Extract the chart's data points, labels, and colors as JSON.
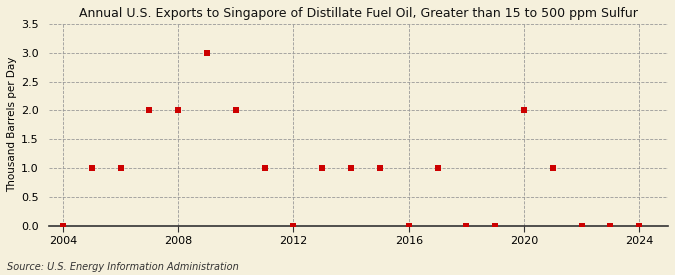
{
  "title": "Annual U.S. Exports to Singapore of Distillate Fuel Oil, Greater than 15 to 500 ppm Sulfur",
  "ylabel": "Thousand Barrels per Day",
  "source": "Source: U.S. Energy Information Administration",
  "background_color": "#f5f0dc",
  "plot_background_color": "#f5f0dc",
  "marker_color": "#cc0000",
  "marker_size": 18,
  "xlim": [
    2003.5,
    2025
  ],
  "ylim": [
    0.0,
    3.5
  ],
  "yticks": [
    0.0,
    0.5,
    1.0,
    1.5,
    2.0,
    2.5,
    3.0,
    3.5
  ],
  "xticks": [
    2004,
    2008,
    2012,
    2016,
    2020,
    2024
  ],
  "years": [
    2004,
    2005,
    2006,
    2007,
    2008,
    2009,
    2010,
    2011,
    2012,
    2013,
    2014,
    2015,
    2016,
    2017,
    2018,
    2019,
    2020,
    2021,
    2022,
    2023,
    2024
  ],
  "values": [
    0.0,
    1.0,
    1.0,
    2.0,
    2.0,
    3.0,
    2.0,
    1.0,
    0.0,
    1.0,
    1.0,
    1.0,
    0.0,
    1.0,
    0.0,
    0.0,
    2.0,
    1.0,
    0.0,
    0.0,
    0.0
  ]
}
